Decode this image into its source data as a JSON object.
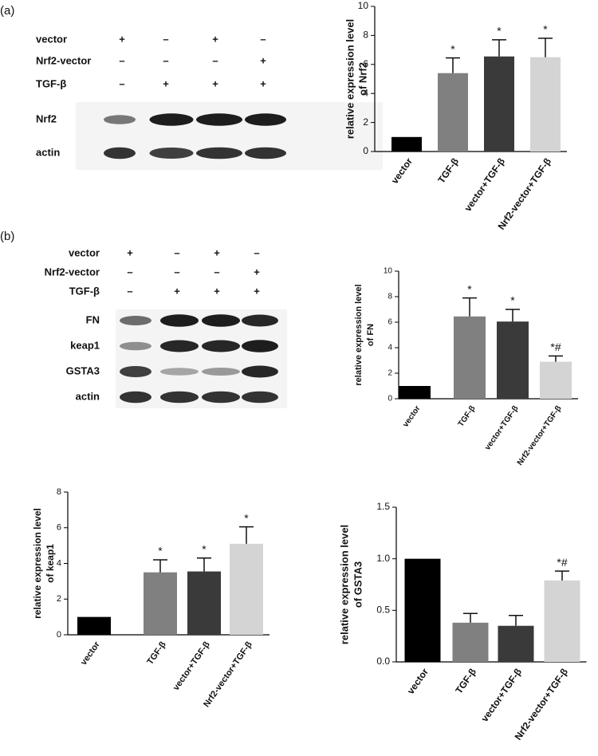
{
  "panels": [
    "(a)",
    "(b)"
  ],
  "blots": [
    {
      "conditions": [
        {
          "label": "vector",
          "signs": [
            "+",
            "–",
            "+",
            "–"
          ]
        },
        {
          "label": "Nrf2-vector",
          "signs": [
            "–",
            "–",
            "–",
            "+"
          ]
        },
        {
          "label": "TGF-β",
          "signs": [
            "–",
            "+",
            "+",
            "+"
          ]
        }
      ],
      "bands": [
        "Nrf2",
        "actin"
      ]
    },
    {
      "conditions": [
        {
          "label": "vector",
          "signs": [
            "+",
            "–",
            "+",
            "–"
          ]
        },
        {
          "label": "Nrf2-vector",
          "signs": [
            "–",
            "–",
            "–",
            "+"
          ]
        },
        {
          "label": "TGF-β",
          "signs": [
            "–",
            "+",
            "+",
            "+"
          ]
        }
      ],
      "bands": [
        "FN",
        "keap1",
        "GSTA3",
        "actin"
      ]
    }
  ],
  "chart_data": [
    {
      "type": "bar",
      "y_label": [
        "relative expression level",
        "of Nrf2"
      ],
      "categories": [
        "vector",
        "TGF-β",
        "vector+TGF-β",
        "Nrf2-vector+TGF-β"
      ],
      "values": [
        1,
        5.4,
        6.55,
        6.5
      ],
      "errors": [
        null,
        1.05,
        1.15,
        1.3
      ],
      "annotations": [
        null,
        "*",
        "*",
        "*"
      ],
      "colors": [
        "#000000",
        "#808080",
        "#3a3a3a",
        "#d4d4d4"
      ],
      "ylim": [
        0,
        10
      ],
      "yticks": [
        0,
        2,
        4,
        6,
        8,
        10
      ]
    },
    {
      "type": "bar",
      "y_label": [
        "relative expression level",
        "of FN"
      ],
      "categories": [
        "vector",
        "TGF-β",
        "vector+TGF-β",
        "Nrf2-vector+TGF-β"
      ],
      "values": [
        1,
        6.45,
        6.05,
        2.9
      ],
      "errors": [
        null,
        1.45,
        0.95,
        0.45
      ],
      "annotations": [
        null,
        "*",
        "*",
        "*#"
      ],
      "colors": [
        "#000000",
        "#808080",
        "#3a3a3a",
        "#d4d4d4"
      ],
      "ylim": [
        0,
        10
      ],
      "yticks": [
        0,
        2,
        4,
        6,
        8,
        10
      ]
    },
    {
      "type": "bar",
      "y_label": [
        "relative expression level",
        "of keap1"
      ],
      "categories": [
        "vector",
        "TGF-β",
        "vector+TGF-β",
        "Nrf2-vector+TGF-β"
      ],
      "values": [
        1,
        3.5,
        3.55,
        5.1
      ],
      "errors": [
        null,
        0.7,
        0.75,
        0.95
      ],
      "annotations": [
        null,
        "*",
        "*",
        "*"
      ],
      "colors": [
        "#000000",
        "#808080",
        "#3a3a3a",
        "#d4d4d4"
      ],
      "ylim": [
        0,
        8
      ],
      "yticks": [
        0,
        2,
        4,
        6,
        8
      ]
    },
    {
      "type": "bar",
      "y_label": [
        "relative expression level",
        "of GSTA3"
      ],
      "categories": [
        "vector",
        "TGF-β",
        "vector+TGF-β",
        "Nrf2-vector+TGF-β"
      ],
      "values": [
        1.0,
        0.38,
        0.35,
        0.79
      ],
      "errors": [
        null,
        0.09,
        0.1,
        0.09
      ],
      "annotations": [
        null,
        null,
        null,
        "*#"
      ],
      "colors": [
        "#000000",
        "#808080",
        "#3a3a3a",
        "#d4d4d4"
      ],
      "ylim": [
        0,
        1.5
      ],
      "yticks": [
        {
          "value": 0,
          "label": "0.0"
        },
        0.5,
        {
          "value": 1,
          "label": "1.0"
        },
        1.5
      ]
    }
  ]
}
